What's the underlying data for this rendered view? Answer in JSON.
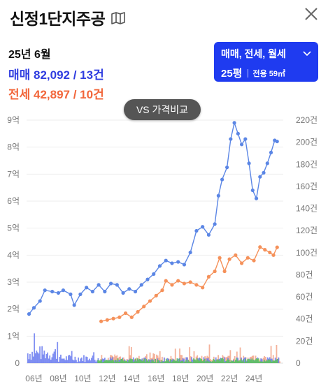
{
  "header": {
    "title": "신정1단지주공",
    "map_icon": "map-book-icon",
    "close_icon": "close-icon"
  },
  "summary": {
    "period": "25년 6월",
    "sale": "매매 82,092 / 13건",
    "rent": "전세 42,897 / 10건",
    "sale_color": "#2f3de0",
    "rent_color": "#f2663a"
  },
  "type_selector": {
    "types": "매매, 전세, 월세",
    "pyeong": "25평",
    "area": "전용 59㎡",
    "bg_color": "#1f3bf0"
  },
  "vs_button": {
    "label": "VS 가격비교"
  },
  "chart_data": {
    "type": "line",
    "x_ticks": [
      "06년",
      "08년",
      "10년",
      "12년",
      "14년",
      "16년",
      "18년",
      "20년",
      "22년",
      "24년"
    ],
    "y_left_ticks": [
      "0",
      "1억",
      "2억",
      "3억",
      "4억",
      "5억",
      "6억",
      "7억",
      "8억",
      "9억"
    ],
    "y_right_ticks": [
      "0",
      "20건",
      "40건",
      "60건",
      "80건",
      "100건",
      "120건",
      "140건",
      "160건",
      "180건",
      "200건",
      "220건"
    ],
    "y_left_range": [
      0,
      9
    ],
    "y_right_range": [
      0,
      220
    ],
    "grid": true,
    "series": [
      {
        "kind": "line",
        "color": "#5b86e5",
        "points": [
          [
            2005.6,
            1.82
          ],
          [
            2006.0,
            2.05
          ],
          [
            2006.5,
            2.3
          ],
          [
            2006.9,
            2.7
          ],
          [
            2007.5,
            2.65
          ],
          [
            2008.0,
            2.6
          ],
          [
            2008.4,
            2.7
          ],
          [
            2009.0,
            2.55
          ],
          [
            2009.3,
            2.15
          ],
          [
            2009.8,
            2.55
          ],
          [
            2010.3,
            2.8
          ],
          [
            2010.8,
            2.65
          ],
          [
            2011.3,
            2.9
          ],
          [
            2011.8,
            2.65
          ],
          [
            2012.3,
            2.95
          ],
          [
            2012.8,
            2.9
          ],
          [
            2013.3,
            2.6
          ],
          [
            2013.8,
            2.75
          ],
          [
            2014.3,
            2.65
          ],
          [
            2014.8,
            2.9
          ],
          [
            2015.3,
            3.1
          ],
          [
            2015.8,
            3.3
          ],
          [
            2016.3,
            3.6
          ],
          [
            2016.8,
            3.8
          ],
          [
            2017.3,
            3.7
          ],
          [
            2017.8,
            3.75
          ],
          [
            2018.3,
            3.65
          ],
          [
            2018.8,
            4.1
          ],
          [
            2019.3,
            4.9
          ],
          [
            2019.8,
            5.05
          ],
          [
            2020.3,
            4.75
          ],
          [
            2020.8,
            5.15
          ],
          [
            2021.1,
            6.2
          ],
          [
            2021.4,
            6.8
          ],
          [
            2021.8,
            7.25
          ],
          [
            2022.1,
            8.3
          ],
          [
            2022.4,
            8.9
          ],
          [
            2022.7,
            8.5
          ],
          [
            2023.0,
            8.1
          ],
          [
            2023.3,
            8.3
          ],
          [
            2023.6,
            7.4
          ],
          [
            2023.9,
            6.4
          ],
          [
            2024.2,
            6.1
          ],
          [
            2024.5,
            6.9
          ],
          [
            2024.8,
            7.05
          ],
          [
            2025.1,
            7.4
          ],
          [
            2025.4,
            7.8
          ],
          [
            2025.7,
            8.25
          ],
          [
            2025.9,
            8.21
          ]
        ]
      },
      {
        "kind": "line",
        "color": "#f5915a",
        "points": [
          [
            2011.5,
            1.55
          ],
          [
            2012.0,
            1.6
          ],
          [
            2012.5,
            1.65
          ],
          [
            2013.0,
            1.7
          ],
          [
            2013.5,
            1.85
          ],
          [
            2014.0,
            1.7
          ],
          [
            2014.5,
            1.9
          ],
          [
            2015.0,
            2.1
          ],
          [
            2015.5,
            2.3
          ],
          [
            2016.0,
            2.5
          ],
          [
            2016.5,
            2.7
          ],
          [
            2016.8,
            3.05
          ],
          [
            2017.3,
            2.9
          ],
          [
            2017.8,
            3.05
          ],
          [
            2018.3,
            2.95
          ],
          [
            2018.8,
            3.0
          ],
          [
            2019.3,
            2.9
          ],
          [
            2019.8,
            2.8
          ],
          [
            2020.3,
            3.2
          ],
          [
            2020.8,
            3.4
          ],
          [
            2021.2,
            3.9
          ],
          [
            2021.6,
            3.4
          ],
          [
            2022.0,
            3.85
          ],
          [
            2022.5,
            4.0
          ],
          [
            2023.0,
            3.7
          ],
          [
            2023.5,
            3.9
          ],
          [
            2024.0,
            3.8
          ],
          [
            2024.5,
            4.3
          ],
          [
            2024.9,
            4.2
          ],
          [
            2025.3,
            4.1
          ],
          [
            2025.6,
            4.0
          ],
          [
            2025.9,
            4.29
          ]
        ]
      }
    ],
    "volume_bars": [
      {
        "series": "매매",
        "color": "#6b7cf0"
      },
      {
        "series": "전세",
        "color": "#f2a48a"
      },
      {
        "series": "월세",
        "color": "#5fc25f"
      }
    ]
  }
}
